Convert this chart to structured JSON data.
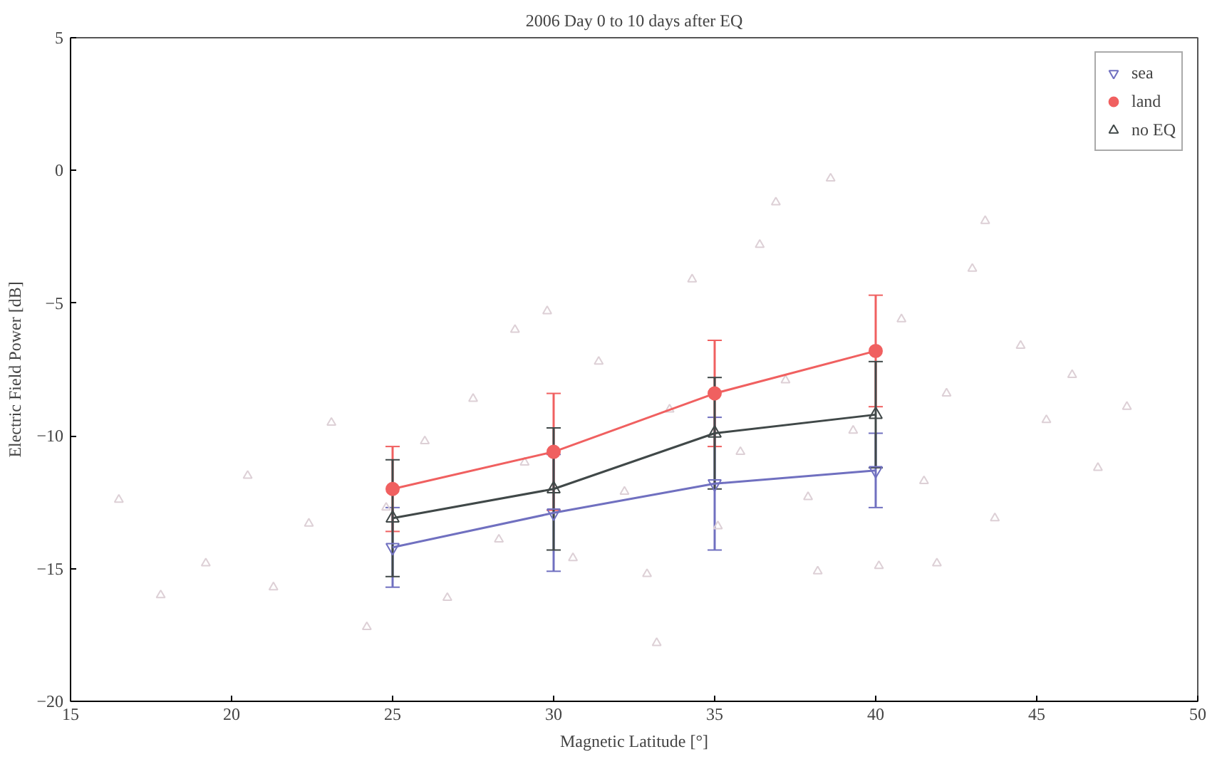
{
  "chart_data": {
    "type": "line",
    "title": "2006 Day 0 to 10 days after EQ",
    "xlabel": "Magnetic Latitude [°]",
    "ylabel": "Electric Field Power [dB]",
    "xlim": [
      15,
      50
    ],
    "ylim": [
      -20,
      5
    ],
    "xticks": [
      15,
      20,
      25,
      30,
      35,
      40,
      45,
      50
    ],
    "yticks": [
      -20,
      -15,
      -10,
      -5,
      0,
      5
    ],
    "grid": false,
    "legend": "top right",
    "series": [
      {
        "type": "scatter",
        "marker": "triangle",
        "color": "#ddd0d6",
        "x": [
          16.5,
          17.8,
          19.2,
          20.5,
          21.3,
          22.4,
          23.1,
          24.2,
          24.8,
          26.0,
          26.7,
          27.5,
          28.3,
          29.1,
          29.8,
          30.6,
          31.4,
          32.2,
          32.9,
          33.6,
          34.3,
          35.1,
          35.8,
          36.4,
          37.2,
          37.9,
          38.6,
          39.3,
          40.1,
          40.8,
          41.5,
          42.2,
          43.0,
          43.7,
          44.5,
          45.3,
          46.1,
          46.9,
          47.8,
          36.9,
          38.2,
          33.2,
          41.9,
          43.4,
          28.8
        ],
        "values": [
          -12.4,
          -16.0,
          -14.8,
          -11.5,
          -15.7,
          -13.3,
          -9.5,
          -17.2,
          -12.7,
          -10.2,
          -16.1,
          -8.6,
          -13.9,
          -11.0,
          -5.3,
          -14.6,
          -7.2,
          -12.1,
          -15.2,
          -9.0,
          -4.1,
          -13.4,
          -10.6,
          -2.8,
          -7.9,
          -12.3,
          -0.3,
          -9.8,
          -14.9,
          -5.6,
          -11.7,
          -8.4,
          -3.7,
          -13.1,
          -6.6,
          -9.4,
          -7.7,
          -11.2,
          -8.9,
          -1.2,
          -15.1,
          -17.8,
          -14.8,
          -1.9,
          -6.0
        ]
      },
      {
        "name": "sea",
        "marker": "triangle_down",
        "color": "#7070c0",
        "x": [
          25,
          30,
          35,
          40
        ],
        "values": [
          -14.2,
          -12.9,
          -11.8,
          -11.3
        ],
        "errors": [
          1.5,
          2.2,
          2.5,
          1.4
        ]
      },
      {
        "name": "land",
        "marker": "circle",
        "color": "#f06060",
        "x": [
          25,
          30,
          35,
          40
        ],
        "values": [
          -12.0,
          -10.6,
          -8.4,
          -6.8
        ],
        "errors": [
          1.6,
          2.2,
          2.0,
          2.1
        ]
      },
      {
        "name": "no EQ",
        "marker": "triangle",
        "color": "#404848",
        "x": [
          25,
          30,
          35,
          40
        ],
        "values": [
          -13.1,
          -12.0,
          -9.9,
          -9.2
        ],
        "errors": [
          2.2,
          2.3,
          2.1,
          2.0
        ]
      }
    ]
  }
}
